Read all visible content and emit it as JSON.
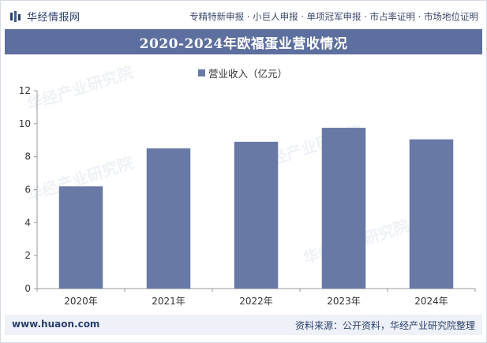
{
  "header": {
    "brand_name": "华经情报网",
    "tagline": "专精特新申报 · 小巨人申报 · 单项冠军申报 · 市占率证明 · 市场地位证明"
  },
  "watermark": "华经产业研究院",
  "chart_data": {
    "type": "bar",
    "title": "2020-2024年欧福蛋业营收情况",
    "categories": [
      "2020年",
      "2021年",
      "2022年",
      "2023年",
      "2024年"
    ],
    "series": [
      {
        "name": "营业收入（亿元）",
        "values": [
          6.2,
          8.5,
          8.9,
          9.75,
          9.05
        ]
      }
    ],
    "ylim": [
      0,
      12
    ],
    "yticks": [
      0,
      2,
      4,
      6,
      8,
      10,
      12
    ],
    "grid": false,
    "legend_position": "top-center",
    "colors": {
      "bar": "#6879a6",
      "title_bar": "#5d6f9e"
    }
  },
  "footer": {
    "website": "www.huaon.com",
    "source": "资料来源：公开资料，华经产业研究院整理"
  }
}
